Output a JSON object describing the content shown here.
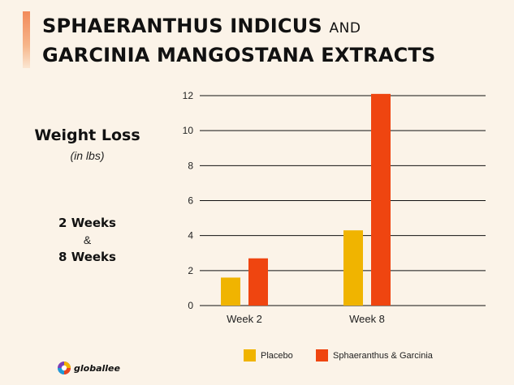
{
  "title": {
    "line1": "SPHAERANTHUS INDICUS",
    "connector": "AND",
    "line2": "GARCINIA MANGOSTANA EXTRACTS"
  },
  "side_panel": {
    "heading": "Weight Loss",
    "unit": "(in lbs)",
    "period1": "2 Weeks",
    "ampersand": "&",
    "period2": "8 Weeks"
  },
  "chart_data": {
    "type": "bar",
    "categories": [
      "Week 2",
      "Week 8"
    ],
    "series": [
      {
        "name": "Placebo",
        "color": "#f0b400",
        "values": [
          1.6,
          4.3
        ]
      },
      {
        "name": "Sphaeranthus & Garcinia",
        "color": "#ef4510",
        "values": [
          2.7,
          12.1
        ]
      }
    ],
    "yticks": [
      0,
      2,
      4,
      6,
      8,
      10,
      12
    ],
    "ylim": [
      0,
      12
    ],
    "grid": true,
    "legend": "bottom",
    "xlabel": "",
    "ylabel": ""
  },
  "brand": {
    "name": "globallee"
  }
}
